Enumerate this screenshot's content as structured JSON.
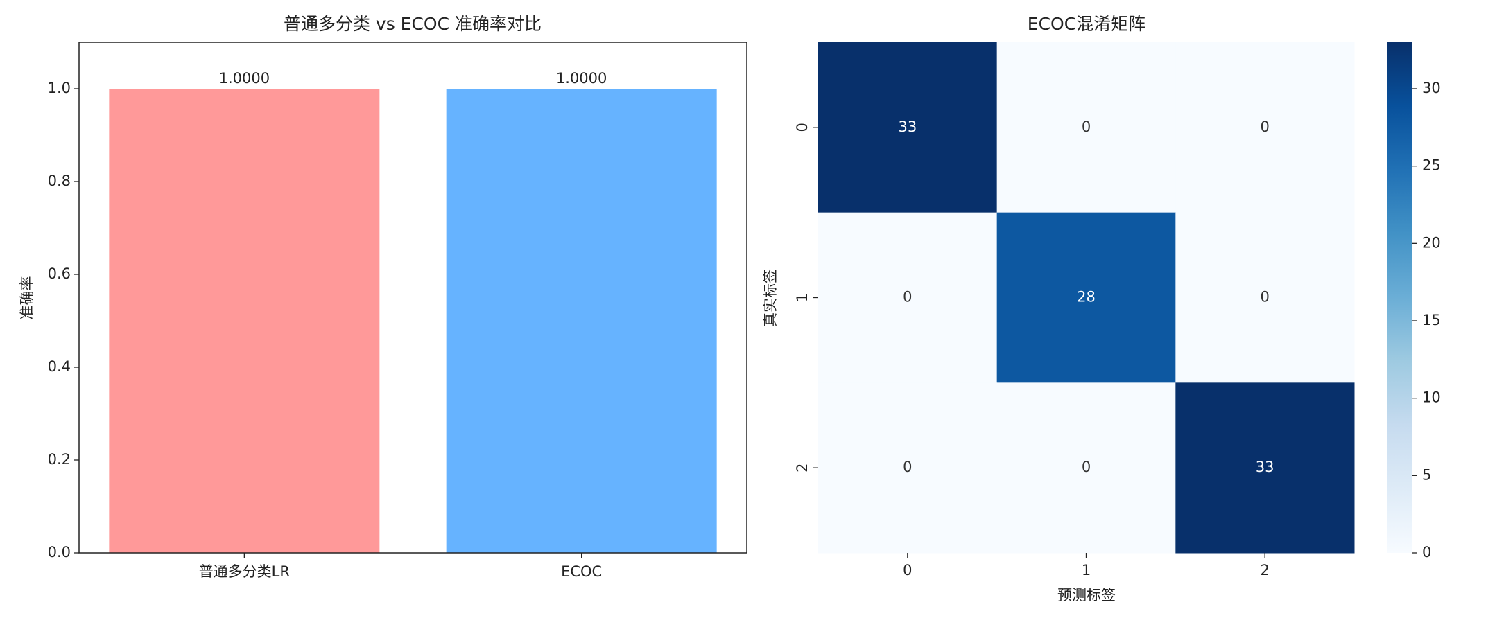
{
  "chart_data": [
    {
      "type": "bar",
      "title": "普通多分类 vs ECOC 准确率对比",
      "y_label": "准确率",
      "categories": [
        "普通多分类LR",
        "ECOC"
      ],
      "series": [
        {
          "colors": [
            "#ff9999",
            "#66b3ff"
          ],
          "values": [
            1,
            1
          ],
          "value_labels": [
            "1.0000",
            "1.0000"
          ]
        }
      ],
      "ylim": [
        0,
        1.1
      ],
      "yticks": [
        {
          "value": 0,
          "label": "0.0"
        },
        0.2,
        0.4,
        0.6,
        0.8,
        {
          "value": 1,
          "label": "1.0"
        }
      ]
    },
    {
      "type": "heatmap",
      "title": "ECOC混淆矩阵",
      "x_label": "预测标签",
      "y_label": "真实标签",
      "categories": [
        "0",
        "1",
        "2"
      ],
      "row_categories": [
        "0",
        "1",
        "2"
      ],
      "values": [
        [
          33,
          0,
          0
        ],
        [
          0,
          28,
          0
        ],
        [
          0,
          0,
          33
        ]
      ],
      "colormap": "Blues",
      "clim": [
        0,
        33
      ],
      "cticks": [
        0,
        5,
        10,
        15,
        20,
        25,
        30
      ]
    }
  ]
}
